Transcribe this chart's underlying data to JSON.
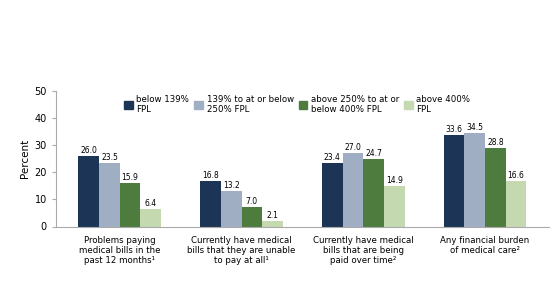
{
  "categories": [
    "Problems paying\nmedical bills in the\npast 12 months¹",
    "Currently have medical\nbills that they are unable\nto pay at all¹",
    "Currently have medical\nbills that are being\npaid over time²",
    "Any financial burden\nof medical care²"
  ],
  "series": [
    {
      "label": "below 139%\nFPL",
      "color": "#1c3557",
      "values": [
        26.0,
        16.8,
        23.4,
        33.6
      ]
    },
    {
      "label": "139% to at or below\n250% FPL",
      "color": "#a0aec4",
      "values": [
        23.5,
        13.2,
        27.0,
        34.5
      ]
    },
    {
      "label": "above 250% to at or\nbelow 400% FPL",
      "color": "#4e7c3f",
      "values": [
        15.9,
        7.0,
        24.7,
        28.8
      ]
    },
    {
      "label": "above 400%\nFPL",
      "color": "#c5d9b0",
      "values": [
        6.4,
        2.1,
        14.9,
        16.6
      ]
    }
  ],
  "ylabel": "Percent",
  "ylim": [
    0,
    50
  ],
  "yticks": [
    0,
    10,
    20,
    30,
    40,
    50
  ],
  "bar_width": 0.17,
  "background_color": "#ffffff",
  "border_color": "#aaaaaa",
  "value_fontsize": 5.5,
  "ylabel_fontsize": 7.5,
  "ytick_fontsize": 7.0,
  "xtick_fontsize": 6.2,
  "legend_fontsize": 6.2
}
